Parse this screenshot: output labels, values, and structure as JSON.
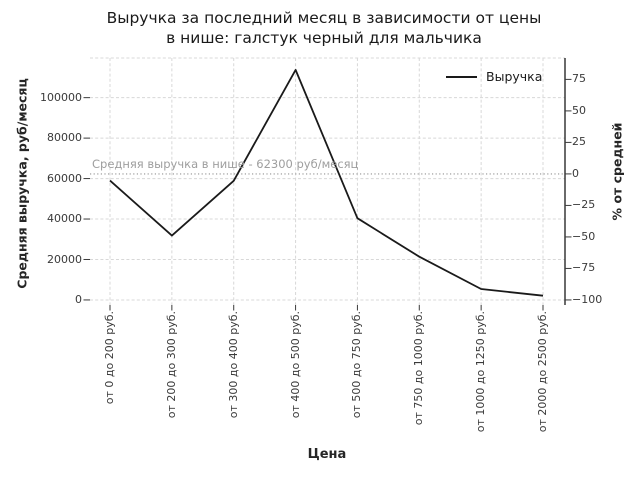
{
  "title": {
    "lines": [
      "Выручка за последний месяц в зависимости от цены",
      "в нише: галстук черный для мальчика"
    ]
  },
  "chart_data": {
    "type": "line",
    "title": "Выручка за последний месяц в зависимости от цены в нише: галстук черный для мальчика",
    "xlabel": "Цена",
    "ylabel_left": "Средняя выручка, руб/месяц",
    "ylabel_right": "% от средней",
    "categories": [
      "от 0 до 200 руб.",
      "от 200 до 300 руб.",
      "от 300 до 400 руб.",
      "от 400 до 500 руб.",
      "от 500 до 750 руб.",
      "от 750 до 1000 руб.",
      "от 1000 до 1250 руб.",
      "от 2000 до 2500 руб."
    ],
    "series": [
      {
        "name": "Выручка",
        "color": "#1a1a1a",
        "values": [
          59000,
          31800,
          58900,
          113700,
          40400,
          21400,
          5400,
          2100
        ]
      }
    ],
    "left_axis": {
      "tick_values": [
        0,
        20000,
        40000,
        60000,
        80000,
        100000
      ],
      "tick_labels": [
        "0",
        "20000",
        "40000",
        "60000",
        "80000",
        "100000"
      ],
      "ylim": [
        -2500,
        119600
      ]
    },
    "right_axis": {
      "tick_values": [
        75,
        50,
        25,
        0,
        -25,
        -50,
        -75,
        -100
      ],
      "tick_labels": [
        "75",
        "50",
        "25",
        "0",
        "−25",
        "−50",
        "−75",
        "−100"
      ],
      "unit": "percent_of_average"
    },
    "average_line": {
      "value": 62300,
      "label": "Средняя выручка в нише - 62300 руб/месяц",
      "style": "dotted",
      "color": "#a8a8a8"
    },
    "legend": {
      "position": "upper right",
      "entries": [
        "Выручка"
      ]
    },
    "grid": true
  },
  "colors": {
    "line": "#1a1a1a",
    "grid": "#d8d8d8",
    "average": "#a8a8a8",
    "tick_text": "#3a3a3a",
    "spine": "#1a1a1a"
  }
}
